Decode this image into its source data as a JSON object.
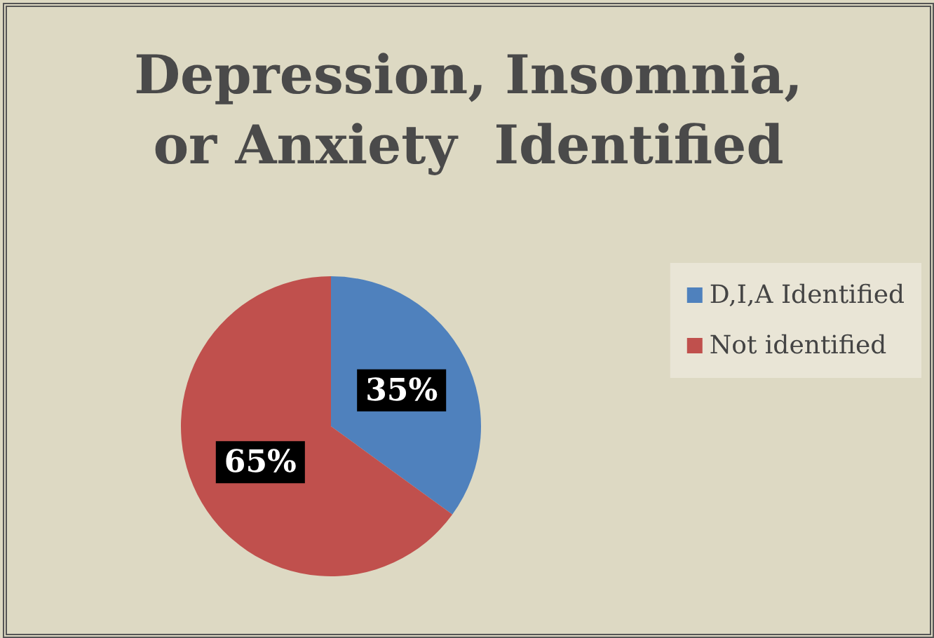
{
  "chart_data": {
    "type": "pie",
    "title": "Depression, Insomnia,\nor Anxiety  Identified",
    "categories": [
      "D,I,A Identified",
      "Not identified"
    ],
    "values": [
      35,
      65
    ],
    "colors": [
      "#4f81bd",
      "#c0504d"
    ],
    "value_labels": [
      "35%",
      "65%"
    ],
    "legend": "right"
  }
}
